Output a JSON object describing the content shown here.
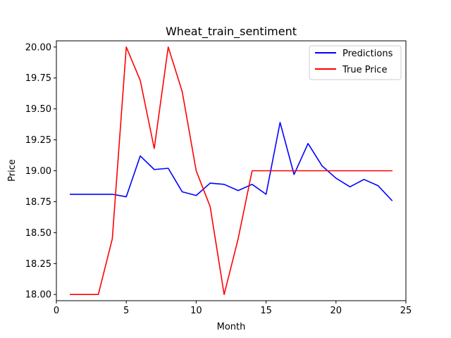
{
  "chart_data": {
    "type": "line",
    "title": "Wheat_train_sentiment",
    "xlabel": "Month",
    "ylabel": "Price",
    "xlim": [
      0,
      25
    ],
    "ylim": [
      17.95,
      20.05
    ],
    "x_ticks": [
      0,
      5,
      10,
      15,
      20,
      25
    ],
    "y_ticks": [
      18.0,
      18.25,
      18.5,
      18.75,
      19.0,
      19.25,
      19.5,
      19.75,
      20.0
    ],
    "grid": false,
    "legend_position": "top-right",
    "x": [
      1,
      2,
      3,
      4,
      5,
      6,
      7,
      8,
      9,
      10,
      11,
      12,
      13,
      14,
      15,
      16,
      17,
      18,
      19,
      20,
      21,
      22,
      23,
      24
    ],
    "series": [
      {
        "name": "Predictions",
        "color": "#0000ff",
        "values": [
          18.81,
          18.81,
          18.81,
          18.81,
          18.79,
          19.12,
          19.01,
          19.02,
          18.83,
          18.8,
          18.9,
          18.89,
          18.84,
          18.89,
          18.81,
          19.39,
          18.97,
          19.22,
          19.04,
          18.94,
          18.87,
          18.93,
          18.88,
          18.76
        ]
      },
      {
        "name": "True Price",
        "color": "#ff0000",
        "values": [
          18.0,
          18.0,
          18.0,
          18.45,
          20.0,
          19.73,
          19.18,
          20.0,
          19.64,
          19.0,
          18.71,
          18.0,
          18.45,
          19.0,
          19.0,
          19.0,
          19.0,
          19.0,
          19.0,
          19.0,
          19.0,
          19.0,
          19.0,
          19.0
        ]
      }
    ]
  }
}
